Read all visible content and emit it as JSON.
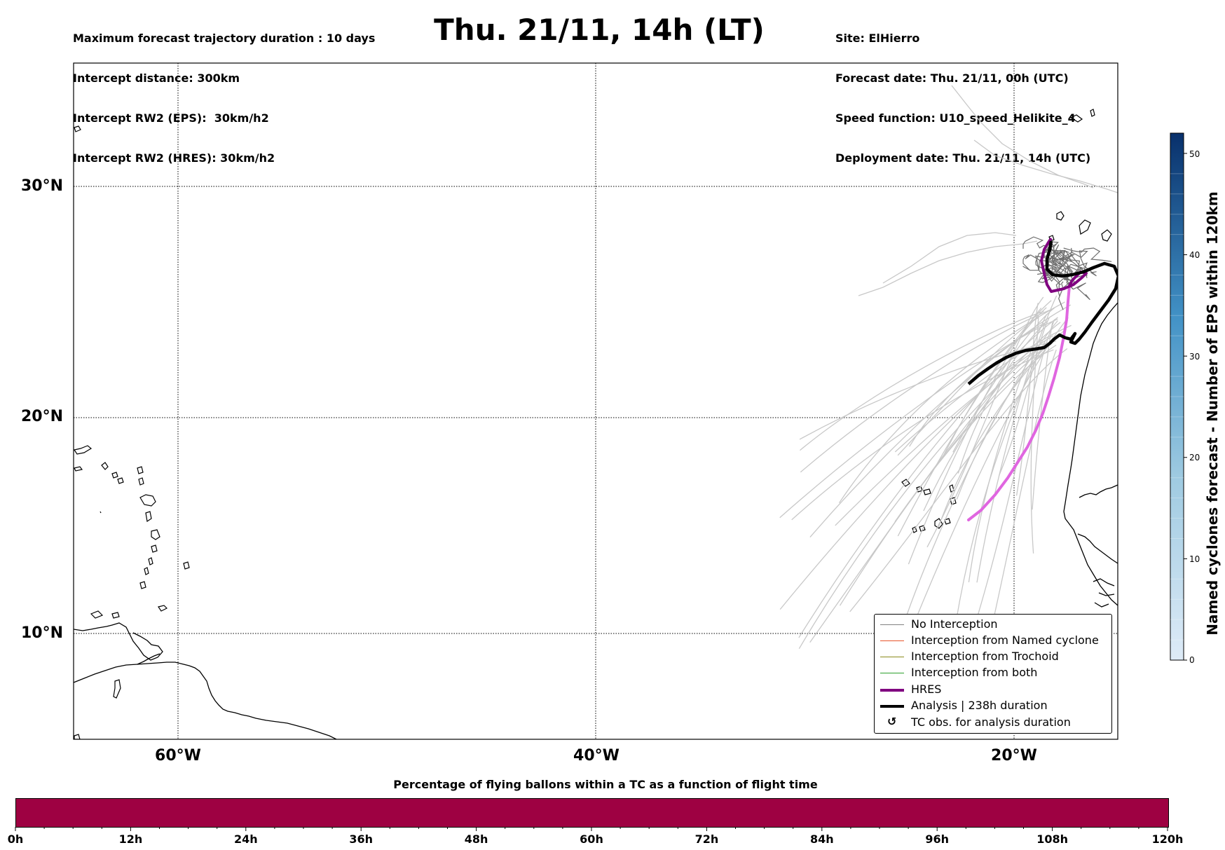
{
  "header": {
    "left_lines": [
      "Maximum forecast trajectory duration : 10 days",
      "Intercept distance: 300km",
      "Intercept RW2 (EPS):  30km/h2",
      "Intercept RW2 (HRES): 30km/h2"
    ],
    "title": "Thu. 21/11, 14h (LT)",
    "right_lines": [
      "Site: ElHierro",
      "Forecast date: Thu. 21/11, 00h (UTC)",
      "Speed function: U10_speed_Helikite_4",
      "Deployment date: Thu. 21/11, 14h (UTC)"
    ]
  },
  "map": {
    "lat_labels": [
      "30°N",
      "20°N",
      "10°N"
    ],
    "lon_labels": [
      "60°W",
      "40°W",
      "20°W"
    ],
    "ocean_color": "#ffffff",
    "coast_color": "#000000",
    "gridlines": "dotted"
  },
  "tracks": {
    "eps_color_light": "#c8c8c8",
    "eps_color_dark": "#6e6e6e",
    "hres_color": "#800080",
    "hres_tail_color": "#e066e0",
    "analysis_color": "#000000"
  },
  "legend": {
    "items": [
      {
        "label": "No Interception",
        "color": "#808080",
        "style": "thin"
      },
      {
        "label": "Interception from Named cyclone",
        "color": "#e8542a",
        "style": "thin"
      },
      {
        "label": "Interception from Trochoid",
        "color": "#8b8b1a",
        "style": "thin"
      },
      {
        "label": "Interception from both",
        "color": "#2ca02c",
        "style": "thin"
      },
      {
        "label": "HRES",
        "color": "#800080",
        "style": "thick"
      },
      {
        "label": "Analysis | 238h duration",
        "color": "#000000",
        "style": "thick"
      },
      {
        "label": "TC obs. for analysis duration",
        "color": "#000000",
        "style": "symbol",
        "symbol": "↺"
      }
    ]
  },
  "colorbar": {
    "title": "Named cyclones forecast - Number of EPS within 120km",
    "ticks": [
      "0",
      "10",
      "20",
      "30",
      "40",
      "50"
    ],
    "color_low": "#deebf7",
    "color_high": "#08306b",
    "range": [
      0,
      52
    ]
  },
  "timebar": {
    "title": "Percentage of flying ballons within a TC as a function of flight time",
    "ticks": [
      "0h",
      "12h",
      "24h",
      "36h",
      "48h",
      "60h",
      "72h",
      "84h",
      "96h",
      "108h",
      "120h"
    ],
    "fill_color": "#9e0142"
  }
}
